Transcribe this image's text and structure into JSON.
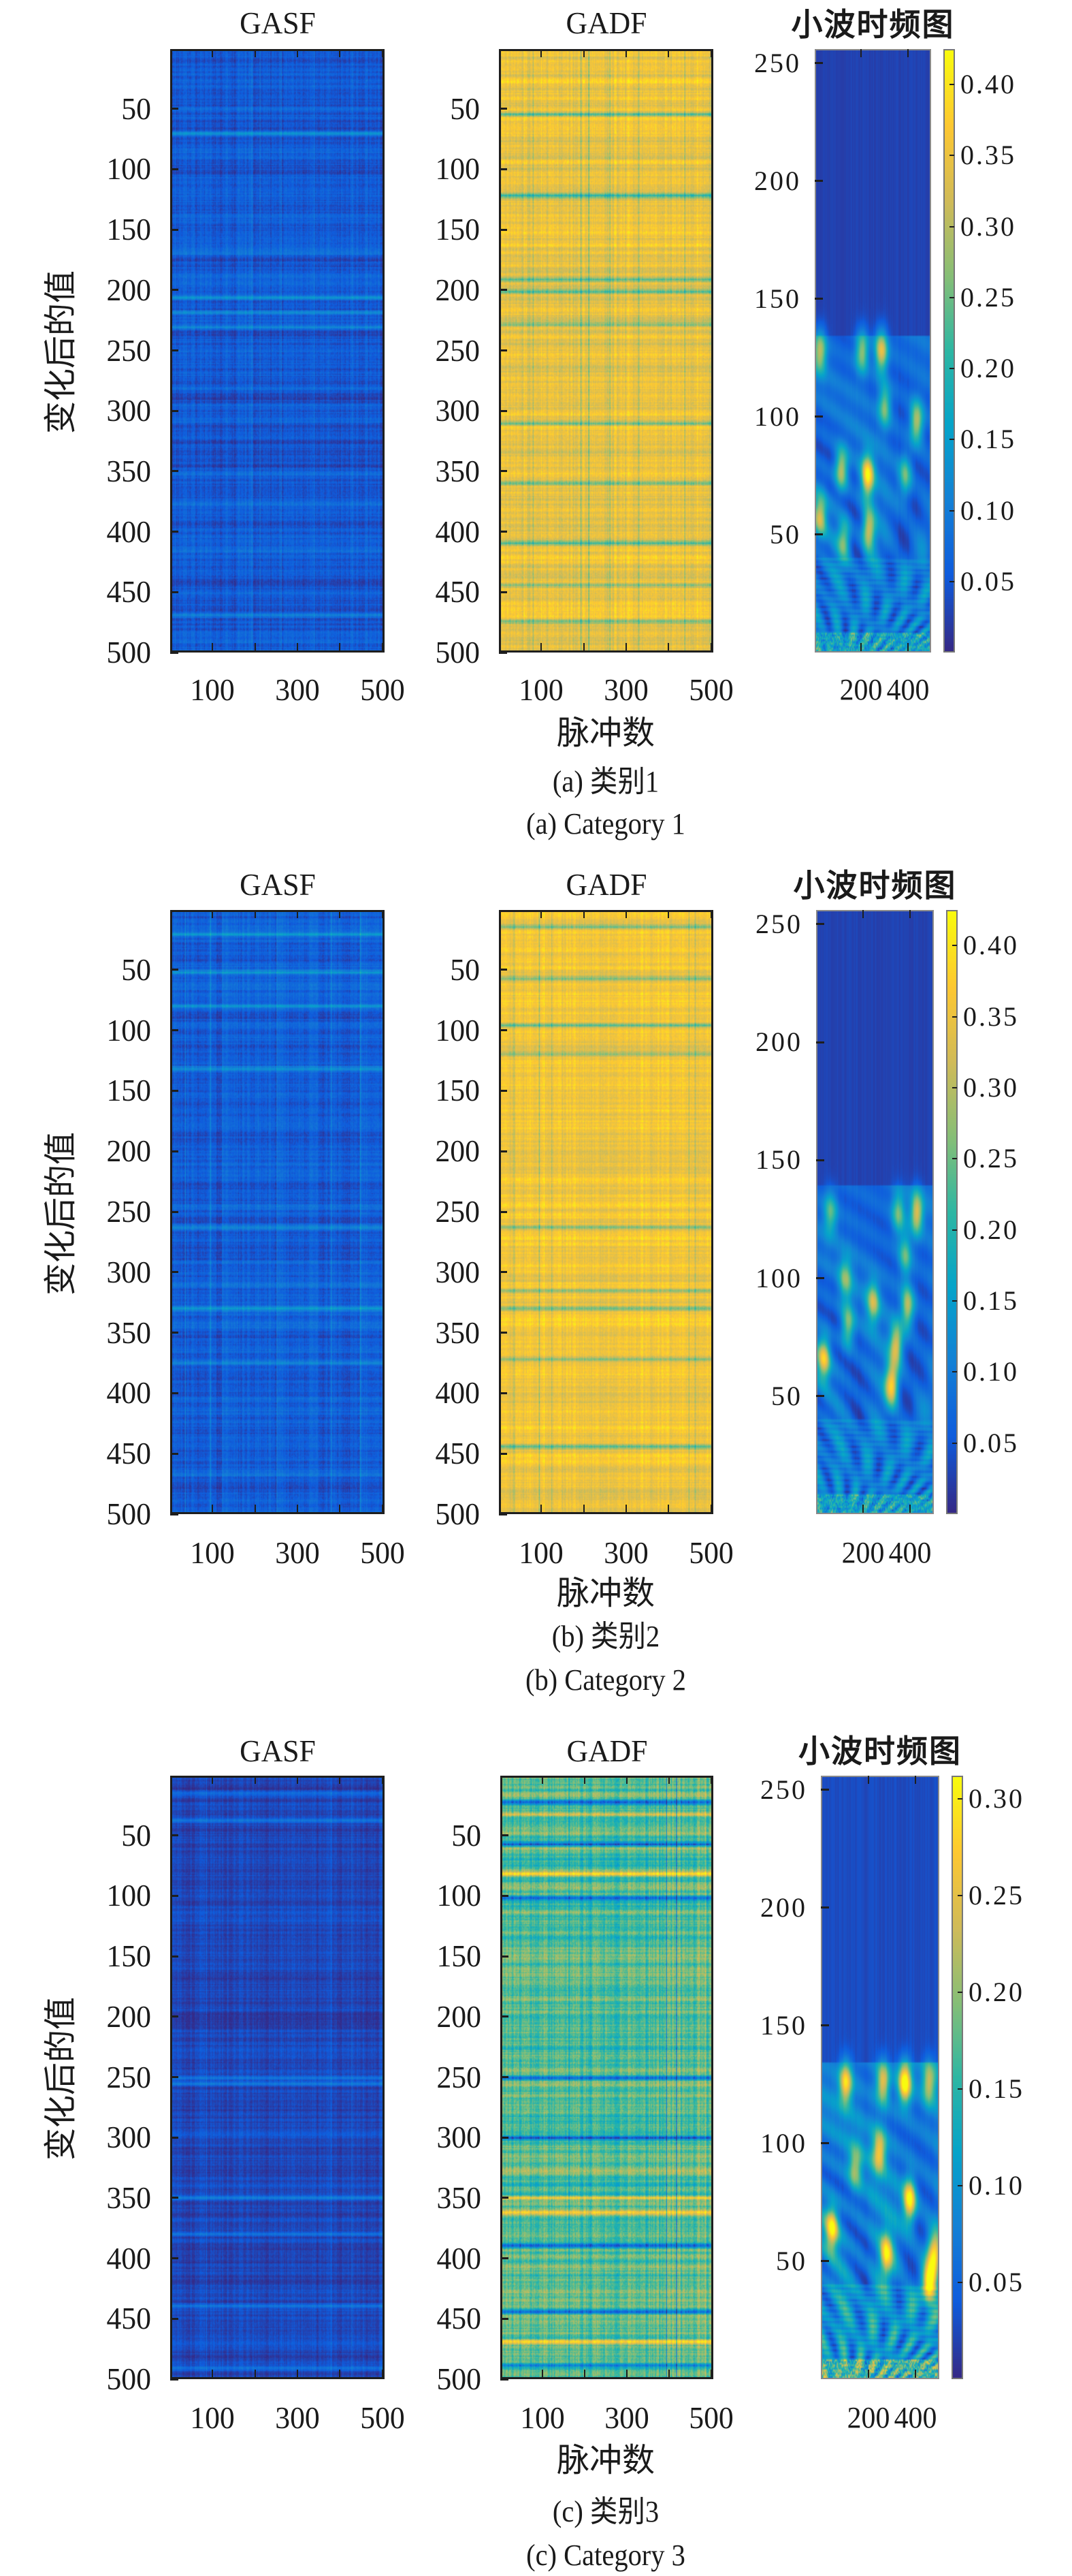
{
  "figure": {
    "y_axis_label": "变化后的值",
    "x_axis_label": "脉冲数"
  },
  "chart_data": [
    {
      "panel": "a",
      "caption_cn": "(a) 类别1",
      "caption_en": "(a) Category 1",
      "subplots": [
        {
          "type": "heatmap",
          "title": "GASF",
          "xlim": [
            0.5,
            505
          ],
          "ylim": [
            0.5,
            500
          ],
          "y_reversed": true,
          "xticks": [
            100,
            200,
            300,
            400,
            500
          ],
          "xticklabels": [
            "100",
            "300",
            "500"
          ],
          "xticklabel_values": [
            100,
            300,
            500
          ],
          "yticks": [
            50,
            100,
            150,
            200,
            250,
            300,
            350,
            400,
            450,
            500
          ],
          "yticklabels": [
            "50",
            "100",
            "150",
            "200",
            "250",
            "300",
            "350",
            "400",
            "450",
            "500"
          ],
          "value_range": [
            0,
            1
          ],
          "base_level": 0.12,
          "variation": 0.12,
          "bright_rows": [
            68,
            205,
            218,
            230,
            470
          ],
          "bright_cols": [
            190,
            210,
            260,
            330
          ],
          "colormap": "parula"
        },
        {
          "type": "heatmap",
          "title": "GADF",
          "xlim": [
            0.5,
            505
          ],
          "ylim": [
            0.5,
            500
          ],
          "y_reversed": true,
          "xticks": [
            100,
            200,
            300,
            400,
            500
          ],
          "xticklabels": [
            "100",
            "300",
            "500"
          ],
          "xticklabel_values": [
            100,
            300,
            500
          ],
          "yticks": [
            50,
            100,
            150,
            200,
            250,
            300,
            350,
            400,
            450,
            500
          ],
          "yticklabels": [
            "50",
            "100",
            "150",
            "200",
            "250",
            "300",
            "350",
            "400",
            "450",
            "500"
          ],
          "value_range": [
            0,
            1
          ],
          "base_level": 0.82,
          "variation": 0.14,
          "dark_rows": [
            52,
            120,
            190,
            200,
            228,
            310,
            360,
            410,
            445,
            475
          ],
          "dark_cols": [
            75,
            190,
            210,
            260,
            330,
            440
          ],
          "colormap": "parula"
        },
        {
          "type": "heatmap",
          "title": "小波时频图",
          "xlim": [
            0,
            500
          ],
          "ylim": [
            0,
            256
          ],
          "y_reversed": false,
          "xticks": [
            200,
            400
          ],
          "xticklabels": [
            "200",
            "400"
          ],
          "yticks": [
            50,
            100,
            150,
            200,
            250
          ],
          "yticklabels": [
            "50",
            "100",
            "150",
            "200",
            "250"
          ],
          "colorbar": {
            "range": [
              0,
              0.425
            ],
            "ticks": [
              0.05,
              0.1,
              0.15,
              0.2,
              0.25,
              0.3,
              0.35,
              0.4
            ],
            "ticklabels": [
              "0.05",
              "0.10",
              "0.15",
              "0.20",
              "0.25",
              "0.30",
              "0.35",
              "0.40"
            ]
          },
          "active_band_max_scale": 135,
          "hotspots": [
            {
              "x": 15,
              "y": 128,
              "value": 0.24
            },
            {
              "x": 200,
              "y": 128,
              "value": 0.22
            },
            {
              "x": 285,
              "y": 128,
              "value": 0.28
            },
            {
              "x": 225,
              "y": 75,
              "value": 0.33
            },
            {
              "x": 110,
              "y": 78,
              "value": 0.26
            },
            {
              "x": 440,
              "y": 98,
              "value": 0.25
            },
            {
              "x": 15,
              "y": 58,
              "value": 0.24
            },
            {
              "x": 230,
              "y": 52,
              "value": 0.26
            },
            {
              "x": 120,
              "y": 48,
              "value": 0.2
            },
            {
              "x": 390,
              "y": 75,
              "value": 0.18
            },
            {
              "x": 300,
              "y": 105,
              "value": 0.2
            }
          ],
          "colormap": "parula"
        }
      ]
    },
    {
      "panel": "b",
      "caption_cn": "(b) 类别2",
      "caption_en": "(b) Category 2",
      "subplots": [
        {
          "type": "heatmap",
          "title": "GASF",
          "xlim": [
            0.5,
            505
          ],
          "ylim": [
            0.5,
            500
          ],
          "y_reversed": true,
          "xticks": [
            100,
            200,
            300,
            400,
            500
          ],
          "xticklabels": [
            "100",
            "300",
            "500"
          ],
          "xticklabel_values": [
            100,
            300,
            500
          ],
          "yticks": [
            50,
            100,
            150,
            200,
            250,
            300,
            350,
            400,
            450,
            500
          ],
          "yticklabels": [
            "50",
            "100",
            "150",
            "200",
            "250",
            "300",
            "350",
            "400",
            "450",
            "500"
          ],
          "value_range": [
            0,
            1
          ],
          "base_level": 0.13,
          "variation": 0.12,
          "bright_rows": [
            18,
            50,
            78,
            130,
            262,
            330,
            375
          ],
          "bright_cols": [
            30,
            90,
            120,
            250,
            380,
            450
          ],
          "colormap": "parula"
        },
        {
          "type": "heatmap",
          "title": "GADF",
          "xlim": [
            0.5,
            505
          ],
          "ylim": [
            0.5,
            500
          ],
          "y_reversed": true,
          "xticks": [
            100,
            200,
            300,
            400,
            500
          ],
          "xticklabels": [
            "100",
            "300",
            "500"
          ],
          "xticklabel_values": [
            100,
            300,
            500
          ],
          "yticks": [
            50,
            100,
            150,
            200,
            250,
            300,
            350,
            400,
            450,
            500
          ],
          "yticklabels": [
            "50",
            "100",
            "150",
            "200",
            "250",
            "300",
            "350",
            "400",
            "450",
            "500"
          ],
          "value_range": [
            0,
            1
          ],
          "base_level": 0.84,
          "variation": 0.12,
          "dark_rows": [
            12,
            55,
            94,
            118,
            262,
            315,
            330,
            372,
            445
          ],
          "dark_cols": [
            30,
            90,
            120,
            450,
            465
          ],
          "colormap": "parula"
        },
        {
          "type": "heatmap",
          "title": "小波时频图",
          "xlim": [
            0,
            500
          ],
          "ylim": [
            0,
            256
          ],
          "y_reversed": false,
          "xticks": [
            200,
            400
          ],
          "xticklabels": [
            "200",
            "400"
          ],
          "yticks": [
            50,
            100,
            150,
            200,
            250
          ],
          "yticklabels": [
            "50",
            "100",
            "150",
            "200",
            "250"
          ],
          "colorbar": {
            "range": [
              0,
              0.425
            ],
            "ticks": [
              0.05,
              0.1,
              0.15,
              0.2,
              0.25,
              0.3,
              0.35,
              0.4
            ],
            "ticklabels": [
              "0.05",
              "0.10",
              "0.15",
              "0.20",
              "0.25",
              "0.30",
              "0.35",
              "0.40"
            ]
          },
          "active_band_max_scale": 140,
          "hotspots": [
            {
              "x": 430,
              "y": 128,
              "value": 0.26
            },
            {
              "x": 350,
              "y": 128,
              "value": 0.18
            },
            {
              "x": 55,
              "y": 128,
              "value": 0.17
            },
            {
              "x": 390,
              "y": 88,
              "value": 0.25
            },
            {
              "x": 340,
              "y": 72,
              "value": 0.26
            },
            {
              "x": 25,
              "y": 66,
              "value": 0.27
            },
            {
              "x": 320,
              "y": 55,
              "value": 0.3
            },
            {
              "x": 240,
              "y": 90,
              "value": 0.22
            },
            {
              "x": 130,
              "y": 80,
              "value": 0.2
            },
            {
              "x": 120,
              "y": 100,
              "value": 0.18
            },
            {
              "x": 380,
              "y": 110,
              "value": 0.18
            }
          ],
          "colormap": "parula"
        }
      ]
    },
    {
      "panel": "c",
      "caption_cn": "(c) 类别3",
      "caption_en": "(c) Category 3",
      "subplots": [
        {
          "type": "heatmap",
          "title": "GASF",
          "xlim": [
            0.5,
            505
          ],
          "ylim": [
            0.5,
            500
          ],
          "y_reversed": true,
          "xticks": [
            100,
            200,
            300,
            400,
            500
          ],
          "xticklabels": [
            "100",
            "300",
            "500"
          ],
          "xticklabel_values": [
            100,
            300,
            500
          ],
          "yticks": [
            50,
            100,
            150,
            200,
            250,
            300,
            350,
            400,
            450,
            500
          ],
          "yticklabels": [
            "50",
            "100",
            "150",
            "200",
            "250",
            "300",
            "350",
            "400",
            "450",
            "500"
          ],
          "value_range": [
            0,
            1
          ],
          "base_level": 0.07,
          "variation": 0.09,
          "bright_rows": [
            12,
            35,
            250,
            255,
            350,
            380,
            440,
            492
          ],
          "bright_cols": [
            80,
            380,
            430
          ],
          "colormap": "parula"
        },
        {
          "type": "heatmap",
          "title": "GADF",
          "xlim": [
            0.5,
            505
          ],
          "ylim": [
            0.5,
            500
          ],
          "y_reversed": true,
          "xticks": [
            100,
            200,
            300,
            400,
            500
          ],
          "xticklabels": [
            "100",
            "300",
            "500"
          ],
          "xticklabel_values": [
            100,
            300,
            500
          ],
          "yticks": [
            50,
            100,
            150,
            200,
            250,
            300,
            350,
            400,
            450,
            500
          ],
          "yticklabels": [
            "50",
            "100",
            "150",
            "200",
            "250",
            "300",
            "350",
            "400",
            "450",
            "500"
          ],
          "value_range": [
            0,
            1
          ],
          "base_level": 0.55,
          "variation": 0.2,
          "bright_rows": [
            30,
            80,
            350,
            362,
            470
          ],
          "dark_rows": [
            20,
            55,
            100,
            250,
            300,
            390,
            445,
            490
          ],
          "dark_cols": [
            160,
            395,
            420
          ],
          "colormap": "parula"
        },
        {
          "type": "heatmap",
          "title": "小波时频图",
          "xlim": [
            0,
            500
          ],
          "ylim": [
            0,
            256
          ],
          "y_reversed": false,
          "xticks": [
            200,
            400
          ],
          "xticklabels": [
            "200",
            "400"
          ],
          "yticks": [
            50,
            100,
            150,
            200,
            250
          ],
          "yticklabels": [
            "50",
            "100",
            "150",
            "200",
            "250"
          ],
          "colorbar": {
            "range": [
              0,
              0.312
            ],
            "ticks": [
              0.05,
              0.1,
              0.15,
              0.2,
              0.25,
              0.3
            ],
            "ticklabels": [
              "0.05",
              "0.10",
              "0.15",
              "0.20",
              "0.25",
              "0.30"
            ]
          },
          "active_band_max_scale": 135,
          "hotspots": [
            {
              "x": 100,
              "y": 126,
              "value": 0.22
            },
            {
              "x": 260,
              "y": 126,
              "value": 0.2
            },
            {
              "x": 355,
              "y": 126,
              "value": 0.27
            },
            {
              "x": 460,
              "y": 126,
              "value": 0.16
            },
            {
              "x": 245,
              "y": 97,
              "value": 0.2
            },
            {
              "x": 375,
              "y": 76,
              "value": 0.25
            },
            {
              "x": 40,
              "y": 64,
              "value": 0.22
            },
            {
              "x": 275,
              "y": 53,
              "value": 0.2
            },
            {
              "x": 480,
              "y": 53,
              "value": 0.22
            },
            {
              "x": 460,
              "y": 40,
              "value": 0.2
            },
            {
              "x": 140,
              "y": 90,
              "value": 0.14
            }
          ],
          "colormap": "parula"
        }
      ]
    }
  ],
  "colors": {
    "parula": [
      "#352a87",
      "#0f5cdd",
      "#1481d6",
      "#06a4ca",
      "#2eb7a4",
      "#87bf77",
      "#d1bb59",
      "#fec832",
      "#f9fb0e"
    ],
    "axis": "#1e1e1e",
    "background": "#ffffff"
  }
}
